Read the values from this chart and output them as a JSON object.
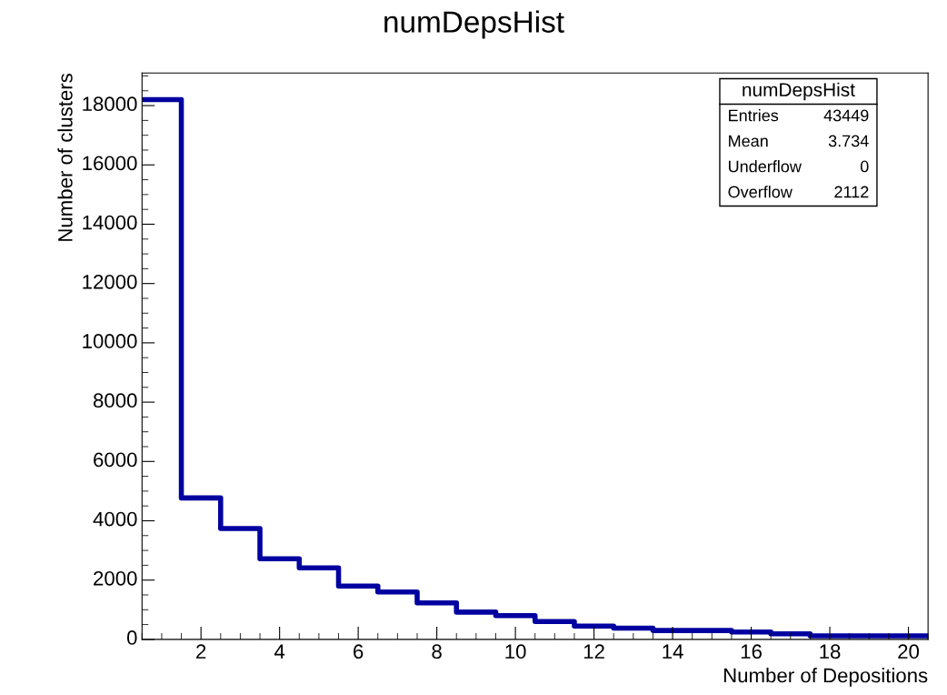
{
  "chart_data": {
    "type": "histogram",
    "title": "numDepsHist",
    "xlabel": "Number of Depositions",
    "ylabel": "Number of clusters",
    "bins": [
      0.5,
      1.5,
      2.5,
      3.5,
      4.5,
      5.5,
      6.5,
      7.5,
      8.5,
      9.5,
      10.5,
      11.5,
      12.5,
      13.5,
      14.5,
      15.5,
      16.5,
      17.5,
      18.5,
      19.5,
      20.5
    ],
    "values": [
      18200,
      4770,
      3740,
      2720,
      2410,
      1800,
      1600,
      1230,
      920,
      800,
      600,
      450,
      380,
      300,
      300,
      250,
      190,
      120,
      120,
      120
    ],
    "color": "#0000a0",
    "xlim": [
      0.5,
      20.5
    ],
    "xticks": [
      2,
      4,
      6,
      8,
      10,
      12,
      14,
      16,
      18,
      20
    ],
    "ylim": [
      0,
      19100
    ],
    "yticks": [
      0,
      2000,
      4000,
      6000,
      8000,
      10000,
      12000,
      14000,
      16000,
      18000
    ],
    "grid": false,
    "annotations": [
      "numDepsHist",
      "Entries",
      "43449",
      "Mean",
      "3.734",
      "Underflow",
      "0",
      "Overflow",
      "2112"
    ]
  }
}
